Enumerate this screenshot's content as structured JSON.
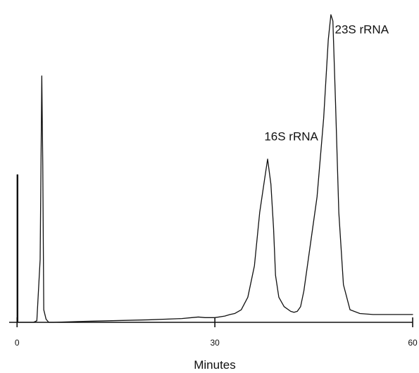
{
  "chart_data": {
    "type": "line",
    "title": "",
    "xlabel": "Minutes",
    "ylabel": "",
    "xlim": [
      -1.2,
      60
    ],
    "ylim": [
      0,
      100
    ],
    "x_ticks": [
      0,
      30,
      60
    ],
    "x_tick_labels": [
      "0",
      "30",
      "60"
    ],
    "grid": false,
    "legend": "none",
    "line_color": "#111111",
    "series": [
      {
        "x": [
          0,
          0,
          0.12,
          0.12,
          2.5,
          3.0,
          3.5,
          3.75,
          3.9,
          4.05,
          4.4,
          4.8,
          5.5,
          10,
          20,
          25,
          26.5,
          27.5,
          28.5,
          30,
          31.5,
          32.3,
          33,
          34,
          35,
          36,
          36.8,
          37.5,
          38,
          38.5,
          38.9,
          39.2,
          39.7,
          40.5,
          41.5,
          42,
          42.5,
          43,
          43.5,
          44.5,
          45.5,
          46.5,
          47.2,
          47.6,
          47.9,
          48.3,
          48.8,
          49.5,
          50.5,
          52,
          54,
          57,
          60
        ],
        "y": [
          0,
          47,
          47,
          0,
          0,
          0.5,
          20,
          78.5,
          50,
          4,
          1,
          0,
          0,
          0.3,
          0.8,
          1.2,
          1.5,
          1.7,
          1.5,
          1.5,
          2.0,
          2.5,
          2.8,
          4,
          8,
          18,
          35,
          45,
          52,
          44,
          30,
          15,
          8,
          5,
          3.5,
          3.2,
          3.5,
          5,
          10,
          25,
          40,
          65,
          90,
          98,
          96,
          70,
          35,
          12,
          4,
          2.8,
          2.5,
          2.5,
          2.5
        ]
      }
    ],
    "annotations": [
      {
        "text": "16S rRNA",
        "x": 37.5,
        "y": 58
      },
      {
        "text": "23S rRNA",
        "x": 48.2,
        "y": 92
      }
    ]
  }
}
